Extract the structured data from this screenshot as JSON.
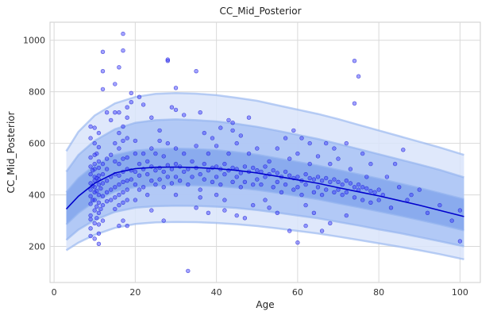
{
  "chart_data": {
    "type": "scatter",
    "title": "CC_Mid_Posterior",
    "xlabel": "Age",
    "ylabel": "CC_Mid_Posterior",
    "xlim": [
      -1,
      105
    ],
    "ylim": [
      60,
      1070
    ],
    "xticks": [
      0,
      20,
      40,
      60,
      80,
      100
    ],
    "yticks": [
      200,
      400,
      600,
      800,
      1000
    ],
    "grid": true,
    "colors": {
      "points": "#3333ff",
      "points_edge": "#1a1acc",
      "median_line": "#0000cc",
      "band_dark": "#6f97ea",
      "band_mid": "#aac3f4",
      "band_light": "#d9e4fa"
    },
    "centile_curves": {
      "x": [
        3,
        6,
        10,
        15,
        20,
        25,
        30,
        35,
        40,
        45,
        50,
        55,
        60,
        65,
        70,
        75,
        80,
        85,
        90,
        95,
        101
      ],
      "median": [
        345,
        395,
        445,
        485,
        502,
        507,
        508,
        506,
        502,
        495,
        485,
        472,
        458,
        445,
        428,
        412,
        396,
        378,
        360,
        340,
        316
      ],
      "p25": [
        285,
        330,
        375,
        413,
        430,
        436,
        438,
        437,
        434,
        428,
        419,
        408,
        395,
        383,
        367,
        352,
        336,
        320,
        303,
        285,
        262
      ],
      "p75": [
        410,
        465,
        515,
        555,
        572,
        578,
        580,
        578,
        574,
        566,
        556,
        542,
        528,
        514,
        497,
        480,
        463,
        445,
        427,
        407,
        383
      ],
      "p10": [
        225,
        265,
        302,
        334,
        350,
        356,
        358,
        357,
        354,
        349,
        341,
        331,
        320,
        309,
        295,
        281,
        266,
        252,
        236,
        220,
        200
      ],
      "p90": [
        490,
        555,
        610,
        655,
        680,
        690,
        693,
        690,
        685,
        676,
        664,
        649,
        633,
        617,
        598,
        578,
        558,
        538,
        518,
        497,
        468
      ],
      "p03": [
        185,
        215,
        245,
        272,
        287,
        293,
        295,
        294,
        291,
        286,
        279,
        270,
        260,
        250,
        238,
        225,
        212,
        199,
        185,
        170,
        150
      ],
      "p97": [
        570,
        645,
        708,
        755,
        780,
        792,
        795,
        793,
        787,
        777,
        765,
        748,
        731,
        714,
        694,
        672,
        650,
        628,
        606,
        584,
        555
      ]
    },
    "points": [
      [
        10,
        410
      ],
      [
        10,
        455
      ],
      [
        10,
        380
      ],
      [
        10,
        520
      ],
      [
        10,
        470
      ],
      [
        10,
        340
      ],
      [
        10,
        600
      ],
      [
        10,
        290
      ],
      [
        10,
        430
      ],
      [
        10,
        500
      ],
      [
        9,
        395
      ],
      [
        9,
        445
      ],
      [
        9,
        365
      ],
      [
        9,
        545
      ],
      [
        9,
        480
      ],
      [
        9,
        320
      ],
      [
        9,
        620
      ],
      [
        9,
        270
      ],
      [
        9,
        420
      ],
      [
        9,
        510
      ],
      [
        11,
        400
      ],
      [
        11,
        460
      ],
      [
        11,
        370
      ],
      [
        11,
        530
      ],
      [
        11,
        475
      ],
      [
        11,
        330
      ],
      [
        11,
        585
      ],
      [
        11,
        250
      ],
      [
        11,
        440
      ],
      [
        11,
        505
      ],
      [
        10.5,
        415
      ],
      [
        10.5,
        465
      ],
      [
        10.5,
        355
      ],
      [
        10.5,
        560
      ],
      [
        10.5,
        310
      ],
      [
        9.5,
        435
      ],
      [
        9.5,
        380
      ],
      [
        9.5,
        495
      ],
      [
        11.5,
        425
      ],
      [
        11.5,
        345
      ],
      [
        12,
        445
      ],
      [
        12,
        395
      ],
      [
        12,
        520
      ],
      [
        12,
        480
      ],
      [
        12,
        360
      ],
      [
        13,
        455
      ],
      [
        13,
        410
      ],
      [
        13,
        540
      ],
      [
        13,
        375
      ],
      [
        13,
        500
      ],
      [
        10,
        230
      ],
      [
        9,
        240
      ],
      [
        11,
        210
      ],
      [
        10,
        660
      ],
      [
        9,
        665
      ],
      [
        11,
        640
      ],
      [
        10,
        555
      ],
      [
        9,
        305
      ],
      [
        11,
        285
      ],
      [
        12,
        300
      ],
      [
        14,
        470
      ],
      [
        14,
        420
      ],
      [
        14,
        555
      ],
      [
        14,
        380
      ],
      [
        15,
        480
      ],
      [
        15,
        430
      ],
      [
        15,
        530
      ],
      [
        15,
        390
      ],
      [
        15,
        600
      ],
      [
        15,
        345
      ],
      [
        16,
        475
      ],
      [
        16,
        440
      ],
      [
        16,
        520
      ],
      [
        16,
        400
      ],
      [
        16,
        580
      ],
      [
        16,
        360
      ],
      [
        17,
        490
      ],
      [
        17,
        450
      ],
      [
        17,
        540
      ],
      [
        17,
        410
      ],
      [
        17,
        610
      ],
      [
        17,
        370
      ],
      [
        18,
        500
      ],
      [
        18,
        455
      ],
      [
        18,
        545
      ],
      [
        18,
        420
      ],
      [
        18,
        620
      ],
      [
        18,
        380
      ],
      [
        19,
        495
      ],
      [
        19,
        460
      ],
      [
        16,
        640
      ],
      [
        17,
        665
      ],
      [
        18,
        700
      ],
      [
        19,
        760
      ],
      [
        19,
        795
      ],
      [
        18,
        740
      ],
      [
        16,
        720
      ],
      [
        15,
        720
      ],
      [
        14,
        690
      ],
      [
        13,
        720
      ],
      [
        17,
        1025
      ],
      [
        17,
        960
      ],
      [
        16,
        895
      ],
      [
        15,
        830
      ],
      [
        12,
        955
      ],
      [
        12,
        880
      ],
      [
        12,
        810
      ],
      [
        17,
        300
      ],
      [
        18,
        280
      ],
      [
        16,
        280
      ],
      [
        20,
        490
      ],
      [
        20,
        440
      ],
      [
        20,
        560
      ],
      [
        20,
        380
      ],
      [
        20,
        610
      ],
      [
        21,
        475
      ],
      [
        21,
        520
      ],
      [
        21,
        420
      ],
      [
        22,
        500
      ],
      [
        22,
        560
      ],
      [
        22,
        430
      ],
      [
        23,
        480
      ],
      [
        23,
        530
      ],
      [
        23,
        400
      ],
      [
        24,
        510
      ],
      [
        24,
        455
      ],
      [
        24,
        580
      ],
      [
        25,
        495
      ],
      [
        25,
        440
      ],
      [
        25,
        560
      ],
      [
        26,
        505
      ],
      [
        26,
        460
      ],
      [
        26,
        610
      ],
      [
        27,
        490
      ],
      [
        27,
        430
      ],
      [
        27,
        550
      ],
      [
        28,
        515
      ],
      [
        28,
        470
      ],
      [
        28,
        600
      ],
      [
        29,
        500
      ],
      [
        29,
        445
      ],
      [
        30,
        520
      ],
      [
        30,
        470
      ],
      [
        30,
        580
      ],
      [
        30,
        400
      ],
      [
        21,
        780
      ],
      [
        22,
        750
      ],
      [
        24,
        700
      ],
      [
        26,
        650
      ],
      [
        28,
        920
      ],
      [
        28,
        925
      ],
      [
        29,
        740
      ],
      [
        30,
        815
      ],
      [
        30,
        730
      ],
      [
        32,
        710
      ],
      [
        33,
        105
      ],
      [
        35,
        880
      ],
      [
        36,
        720
      ],
      [
        24,
        340
      ],
      [
        27,
        300
      ],
      [
        31,
        510
      ],
      [
        31,
        455
      ],
      [
        32,
        490
      ],
      [
        32,
        560
      ],
      [
        33,
        500
      ],
      [
        33,
        440
      ],
      [
        34,
        530
      ],
      [
        34,
        470
      ],
      [
        35,
        505
      ],
      [
        35,
        590
      ],
      [
        36,
        480
      ],
      [
        36,
        420
      ],
      [
        37,
        520
      ],
      [
        37,
        460
      ],
      [
        38,
        495
      ],
      [
        38,
        560
      ],
      [
        39,
        505
      ],
      [
        39,
        450
      ],
      [
        40,
        510
      ],
      [
        40,
        470
      ],
      [
        40,
        590
      ],
      [
        41,
        500
      ],
      [
        41,
        440
      ],
      [
        42,
        520
      ],
      [
        42,
        480
      ],
      [
        42,
        380
      ],
      [
        43,
        495
      ],
      [
        43,
        560
      ],
      [
        44,
        505
      ],
      [
        44,
        450
      ],
      [
        45,
        500
      ],
      [
        45,
        470
      ],
      [
        45,
        600
      ],
      [
        46,
        485
      ],
      [
        46,
        430
      ],
      [
        47,
        510
      ],
      [
        47,
        450
      ],
      [
        48,
        490
      ],
      [
        48,
        560
      ],
      [
        49,
        505
      ],
      [
        49,
        440
      ],
      [
        50,
        495
      ],
      [
        50,
        460
      ],
      [
        50,
        580
      ],
      [
        37,
        640
      ],
      [
        39,
        620
      ],
      [
        41,
        660
      ],
      [
        44,
        680
      ],
      [
        46,
        630
      ],
      [
        48,
        700
      ],
      [
        35,
        350
      ],
      [
        38,
        330
      ],
      [
        42,
        340
      ],
      [
        45,
        320
      ],
      [
        47,
        310
      ],
      [
        49,
        360
      ],
      [
        43,
        690
      ],
      [
        44,
        650
      ],
      [
        40,
        400
      ],
      [
        36,
        390
      ],
      [
        51,
        490
      ],
      [
        51,
        440
      ],
      [
        52,
        510
      ],
      [
        52,
        470
      ],
      [
        52,
        380
      ],
      [
        53,
        480
      ],
      [
        53,
        530
      ],
      [
        54,
        495
      ],
      [
        54,
        430
      ],
      [
        55,
        485
      ],
      [
        55,
        450
      ],
      [
        55,
        580
      ],
      [
        56,
        470
      ],
      [
        56,
        410
      ],
      [
        57,
        490
      ],
      [
        57,
        440
      ],
      [
        58,
        475
      ],
      [
        58,
        540
      ],
      [
        59,
        465
      ],
      [
        59,
        420
      ],
      [
        60,
        470
      ],
      [
        60,
        430
      ],
      [
        60,
        560
      ],
      [
        61,
        455
      ],
      [
        61,
        400
      ],
      [
        62,
        480
      ],
      [
        62,
        440
      ],
      [
        62,
        360
      ],
      [
        63,
        465
      ],
      [
        63,
        520
      ],
      [
        64,
        460
      ],
      [
        64,
        410
      ],
      [
        65,
        470
      ],
      [
        65,
        430
      ],
      [
        65,
        550
      ],
      [
        66,
        455
      ],
      [
        66,
        400
      ],
      [
        67,
        465
      ],
      [
        67,
        420
      ],
      [
        68,
        450
      ],
      [
        68,
        520
      ],
      [
        69,
        460
      ],
      [
        69,
        410
      ],
      [
        70,
        450
      ],
      [
        70,
        420
      ],
      [
        70,
        540
      ],
      [
        57,
        620
      ],
      [
        59,
        650
      ],
      [
        61,
        620
      ],
      [
        63,
        600
      ],
      [
        60,
        215
      ],
      [
        58,
        260
      ],
      [
        62,
        280
      ],
      [
        66,
        260
      ],
      [
        68,
        290
      ],
      [
        64,
        330
      ],
      [
        55,
        330
      ],
      [
        53,
        350
      ],
      [
        67,
        600
      ],
      [
        69,
        580
      ],
      [
        71,
        440
      ],
      [
        71,
        400
      ],
      [
        72,
        455
      ],
      [
        72,
        410
      ],
      [
        73,
        445
      ],
      [
        73,
        500
      ],
      [
        74,
        430
      ],
      [
        74,
        390
      ],
      [
        75,
        440
      ],
      [
        75,
        420
      ],
      [
        76,
        430
      ],
      [
        76,
        380
      ],
      [
        77,
        425
      ],
      [
        77,
        470
      ],
      [
        78,
        415
      ],
      [
        78,
        370
      ],
      [
        79,
        410
      ],
      [
        80,
        420
      ],
      [
        80,
        380
      ],
      [
        81,
        400
      ],
      [
        74,
        920
      ],
      [
        75,
        860
      ],
      [
        74,
        755
      ],
      [
        72,
        600
      ],
      [
        76,
        560
      ],
      [
        78,
        520
      ],
      [
        86,
        575
      ],
      [
        84,
        520
      ],
      [
        82,
        470
      ],
      [
        83,
        350
      ],
      [
        85,
        430
      ],
      [
        87,
        380
      ],
      [
        88,
        400
      ],
      [
        90,
        420
      ],
      [
        92,
        330
      ],
      [
        95,
        360
      ],
      [
        100,
        340
      ],
      [
        100,
        220
      ],
      [
        98,
        300
      ],
      [
        72,
        320
      ]
    ]
  }
}
